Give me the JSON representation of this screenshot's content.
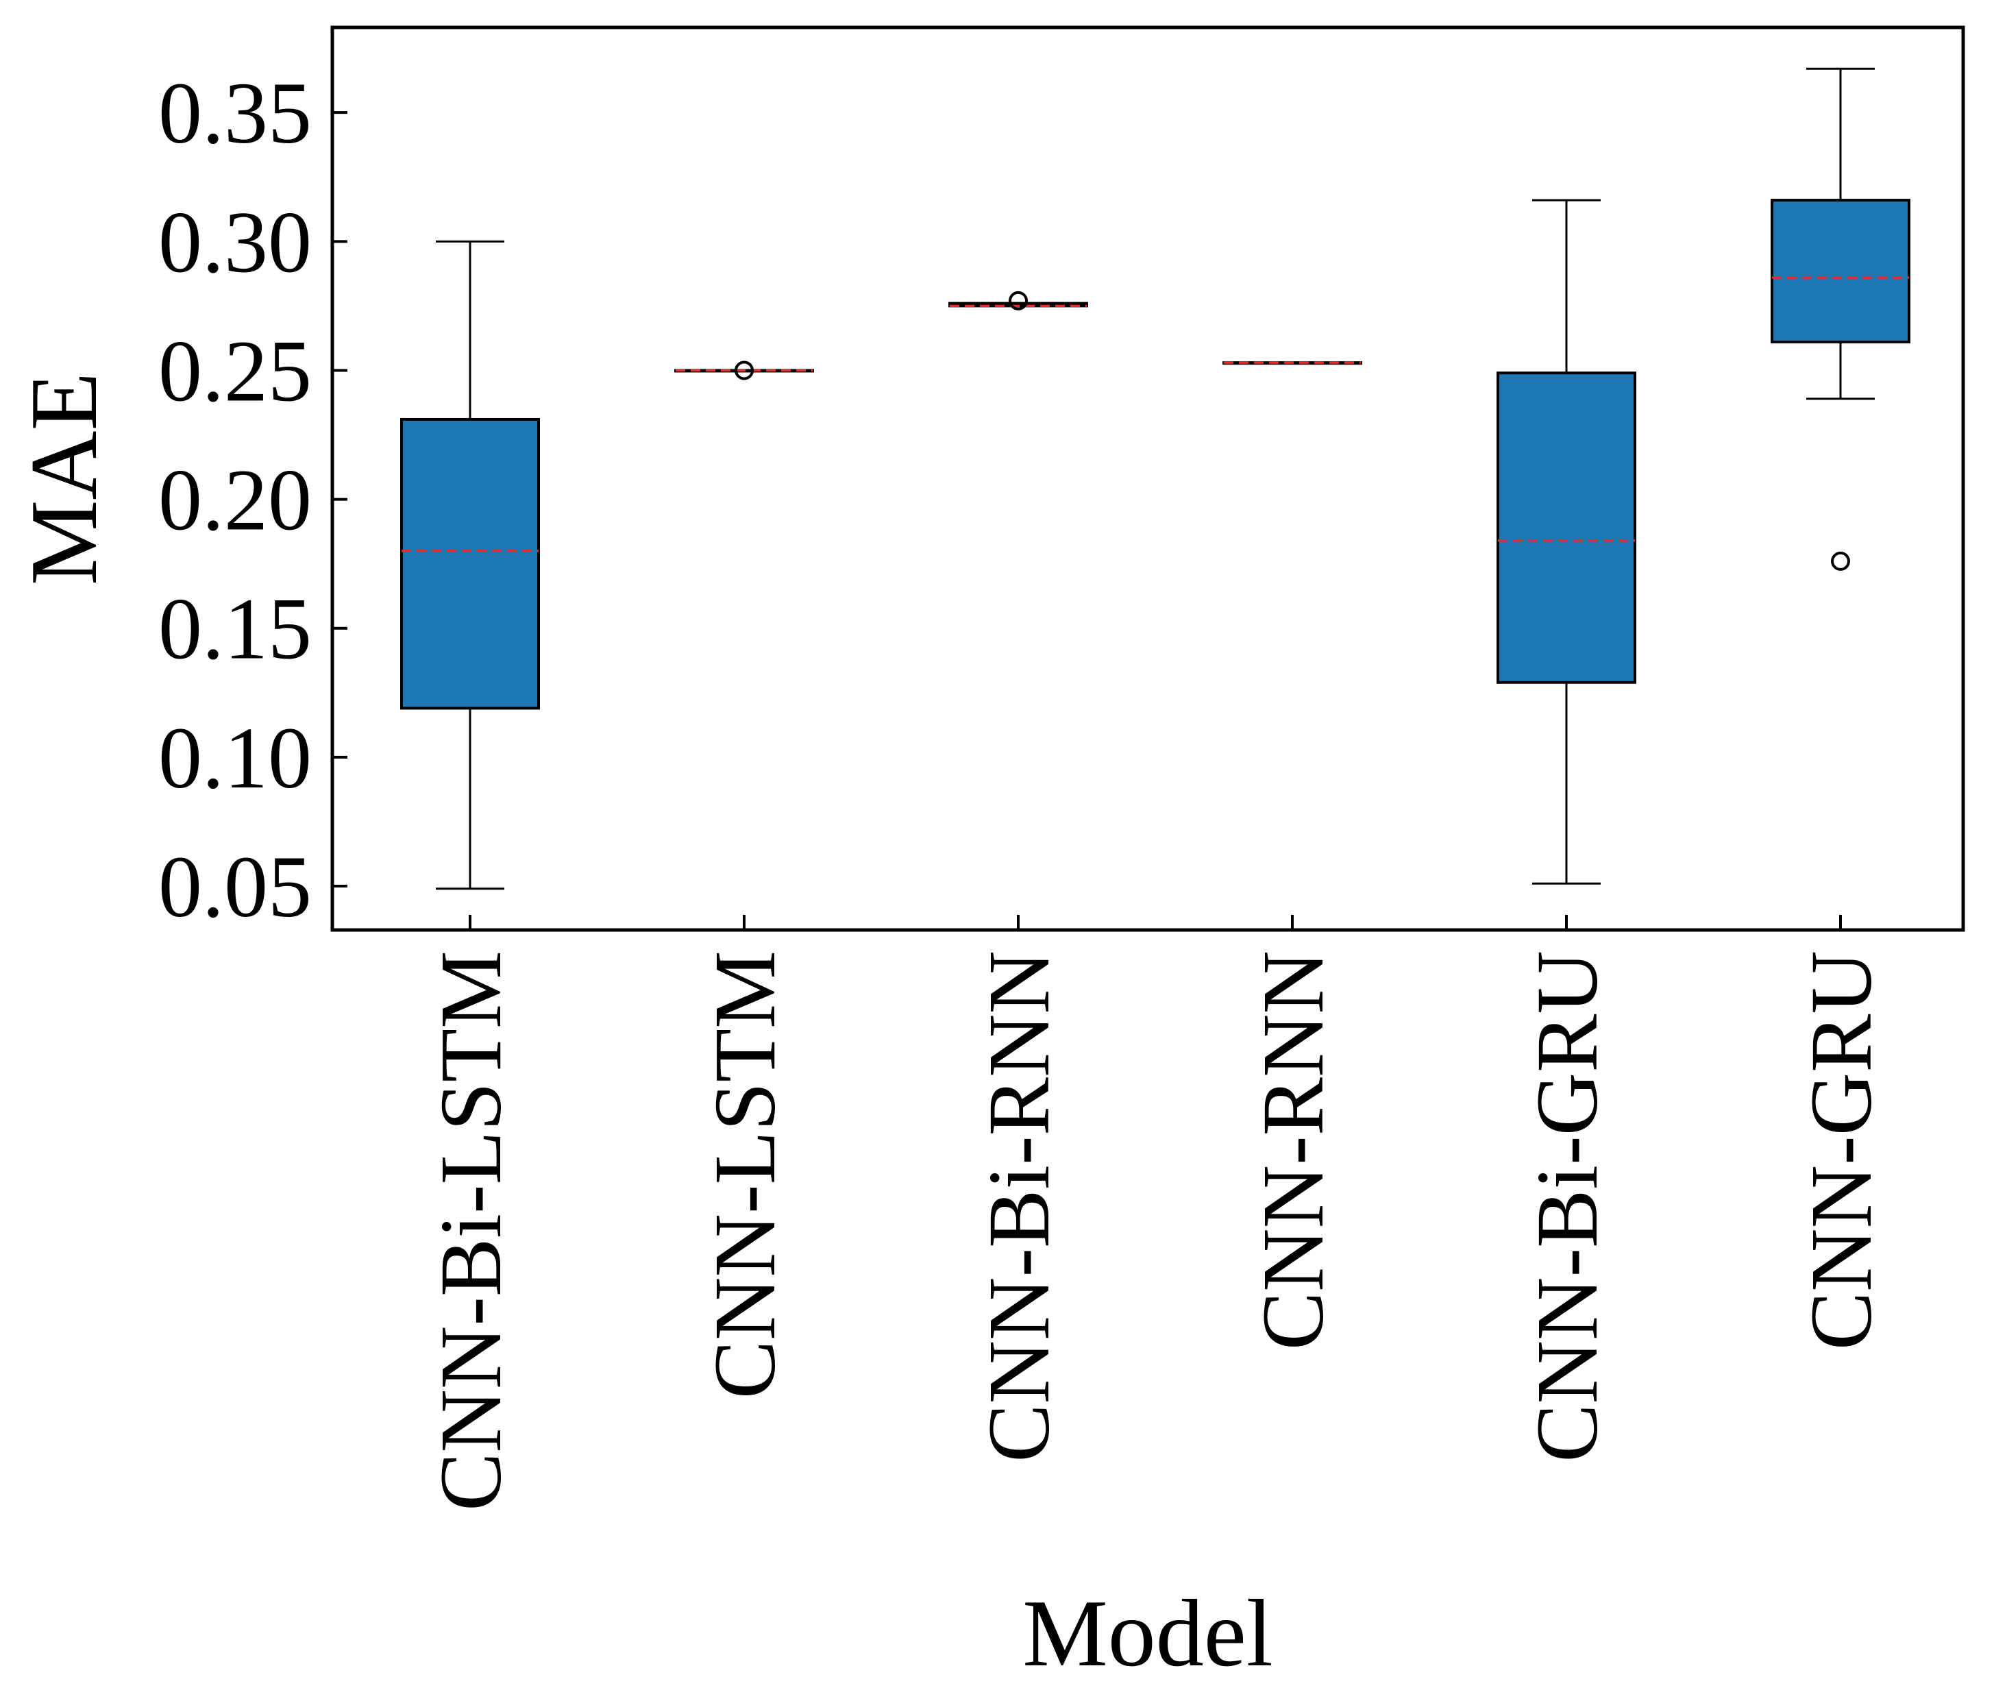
{
  "chart_data": {
    "type": "box",
    "title": "",
    "xlabel": "Model",
    "ylabel": "MAE",
    "ylim": [
      0.033,
      0.383
    ],
    "yticks": [
      0.05,
      0.1,
      0.15,
      0.2,
      0.25,
      0.3,
      0.35
    ],
    "ytick_labels": [
      "0.05",
      "0.10",
      "0.15",
      "0.20",
      "0.25",
      "0.30",
      "0.35"
    ],
    "grid": false,
    "categories": [
      "CNN-Bi-LSTM",
      "CNN-LSTM",
      "CNN-Bi-RNN",
      "CNN-RNN",
      "CNN-Bi-GRU",
      "CNN-GRU"
    ],
    "boxes": [
      {
        "name": "CNN-Bi-LSTM",
        "whisker_low": 0.049,
        "q1": 0.119,
        "median": 0.18,
        "q3": 0.231,
        "whisker_high": 0.3,
        "outliers": []
      },
      {
        "name": "CNN-LSTM",
        "whisker_low": 0.25,
        "q1": 0.25,
        "median": 0.25,
        "q3": 0.25,
        "whisker_high": 0.25,
        "outliers": [
          0.25
        ]
      },
      {
        "name": "CNN-Bi-RNN",
        "whisker_low": 0.275,
        "q1": 0.275,
        "median": 0.275,
        "q3": 0.276,
        "whisker_high": 0.276,
        "outliers": [
          0.277
        ]
      },
      {
        "name": "CNN-RNN",
        "whisker_low": 0.253,
        "q1": 0.253,
        "median": 0.253,
        "q3": 0.253,
        "whisker_high": 0.253,
        "outliers": []
      },
      {
        "name": "CNN-Bi-GRU",
        "whisker_low": 0.051,
        "q1": 0.129,
        "median": 0.184,
        "q3": 0.249,
        "whisker_high": 0.316,
        "outliers": []
      },
      {
        "name": "CNN-GRU",
        "whisker_low": 0.239,
        "q1": 0.261,
        "median": 0.286,
        "q3": 0.316,
        "whisker_high": 0.367,
        "outliers": [
          0.176
        ]
      }
    ],
    "colors": {
      "box_fill": "#1f77b4",
      "median": "#e8282b",
      "line": "#000000"
    }
  }
}
